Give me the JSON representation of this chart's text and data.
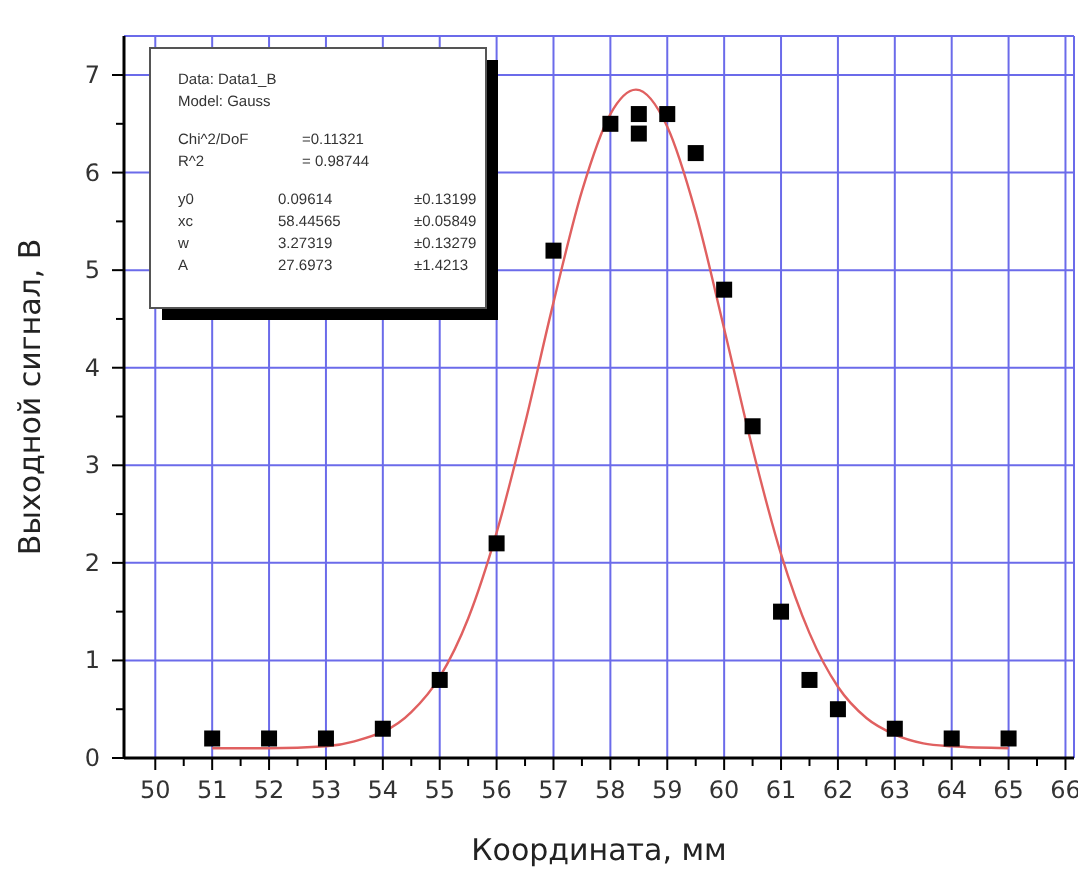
{
  "chart_data": {
    "type": "scatter",
    "xlabel": "Координата, мм",
    "ylabel": "Выходной сигнал, В",
    "xlim": [
      49.45,
      66.15
    ],
    "ylim": [
      0,
      7.4
    ],
    "xticks": [
      50,
      {
        "value": 50.5,
        "label": null
      },
      51,
      {
        "value": 51.5,
        "label": null
      },
      52,
      {
        "value": 52.5,
        "label": null
      },
      53,
      {
        "value": 53.5,
        "label": null
      },
      54,
      {
        "value": 54.5,
        "label": null
      },
      55,
      {
        "value": 55.5,
        "label": null
      },
      56,
      {
        "value": 56.5,
        "label": null
      },
      57,
      {
        "value": 57.5,
        "label": null
      },
      58,
      {
        "value": 58.5,
        "label": null
      },
      59,
      {
        "value": 59.5,
        "label": null
      },
      60,
      {
        "value": 60.5,
        "label": null
      },
      61,
      {
        "value": 61.5,
        "label": null
      },
      62,
      {
        "value": 62.5,
        "label": null
      },
      63,
      {
        "value": 63.5,
        "label": null
      },
      64,
      {
        "value": 64.5,
        "label": null
      },
      65,
      {
        "value": 65.5,
        "label": null
      },
      66
    ],
    "yticks": [
      0,
      {
        "value": 0.5,
        "label": null
      },
      1,
      {
        "value": 1.5,
        "label": null
      },
      2,
      {
        "value": 2.5,
        "label": null
      },
      3,
      {
        "value": 3.5,
        "label": null
      },
      4,
      {
        "value": 4.5,
        "label": null
      },
      5,
      {
        "value": 5.5,
        "label": null
      },
      6,
      {
        "value": 6.5,
        "label": null
      },
      7
    ],
    "grid": true,
    "annotations": [
      "Data: Data1_B",
      "Model: Gauss",
      "Chi^2/DoF\t=0.11321",
      "R^2\t= 0.98744",
      "y0\t0.09614\t±0.13199",
      "xc\t58.44565\t±0.05849",
      "w\t3.27319\t±0.13279",
      "A\t27.6973\t±1.4213"
    ],
    "series": [
      {
        "type": "line",
        "color": "#e06060",
        "marker": "none",
        "line_style": "solid",
        "x": [
          51,
          52,
          53,
          53.5,
          54.5,
          55,
          55.5,
          56,
          56.5,
          57,
          57.5,
          58,
          58.45,
          59,
          59.5,
          60,
          60.5,
          61,
          61.5,
          62,
          62.5,
          63,
          63.5,
          64,
          65
        ],
        "values": [
          0.1,
          0.1,
          0.12,
          0.17,
          0.47,
          0.83,
          1.43,
          2.31,
          3.43,
          4.67,
          5.81,
          6.6,
          6.85,
          6.47,
          5.59,
          4.4,
          3.17,
          2.09,
          1.28,
          0.73,
          0.41,
          0.24,
          0.15,
          0.12,
          0.1
        ]
      },
      {
        "color": "#000000",
        "marker": "square",
        "x": [
          51,
          52,
          53,
          54,
          55,
          56,
          57,
          58,
          58.5,
          58.5,
          59,
          59.5,
          60,
          60.5,
          61,
          61.5,
          62,
          63,
          64,
          65
        ],
        "values": [
          0.2,
          0.2,
          0.2,
          0.3,
          0.8,
          2.2,
          5.2,
          6.5,
          6.6,
          6.4,
          6.6,
          6.2,
          4.8,
          3.4,
          1.5,
          0.8,
          0.5,
          0.3,
          0.2,
          0.2
        ]
      }
    ]
  }
}
